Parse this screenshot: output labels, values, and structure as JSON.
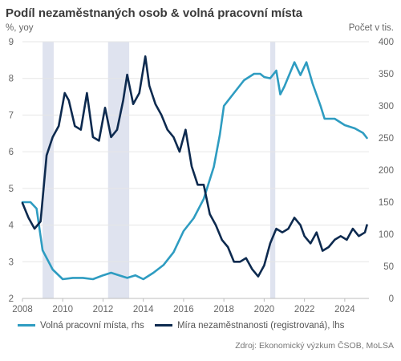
{
  "header": {
    "title": "Podíl nezaměstnaných osob & volná pracovní místa",
    "left_unit": "%, yoy",
    "right_unit": "Počet v tis."
  },
  "source": "Zdroj: Ekonomický výzkum ČSOB, MoLSA",
  "colors": {
    "vacancies": "#2e9cc1",
    "unemployment": "#0d2a4f",
    "shade": "#dfe3ef",
    "grid": "#e6e6e6"
  },
  "chart_data": {
    "type": "line",
    "x_range": [
      2008,
      2025.2
    ],
    "x_ticks": [
      "2008",
      "2010",
      "2012",
      "2014",
      "2016",
      "2018",
      "2020",
      "2022",
      "2024"
    ],
    "left_axis": {
      "range": [
        2,
        9
      ],
      "ticks": [
        "2",
        "3",
        "4",
        "5",
        "6",
        "7",
        "8",
        "9"
      ]
    },
    "right_axis": {
      "range": [
        0,
        400
      ],
      "ticks": [
        "0",
        "50",
        "100",
        "150",
        "200",
        "250",
        "300",
        "350",
        "400"
      ]
    },
    "shaded_periods": [
      [
        2009.0,
        2009.55
      ],
      [
        2012.25,
        2013.3
      ],
      [
        2020.3,
        2020.55
      ]
    ],
    "legend_position": "bottom",
    "series": [
      {
        "name": "Volná pracovní místa, rhs",
        "axis": "right",
        "color": "#2e9cc1",
        "points": [
          [
            2008.0,
            150
          ],
          [
            2008.4,
            150
          ],
          [
            2008.7,
            140
          ],
          [
            2009.0,
            75
          ],
          [
            2009.5,
            45
          ],
          [
            2010.0,
            30
          ],
          [
            2010.5,
            32
          ],
          [
            2011.0,
            32
          ],
          [
            2011.5,
            30
          ],
          [
            2012.0,
            36
          ],
          [
            2012.4,
            40
          ],
          [
            2012.8,
            36
          ],
          [
            2013.2,
            32
          ],
          [
            2013.6,
            36
          ],
          [
            2014.0,
            30
          ],
          [
            2014.5,
            40
          ],
          [
            2015.0,
            52
          ],
          [
            2015.5,
            72
          ],
          [
            2016.0,
            105
          ],
          [
            2016.5,
            125
          ],
          [
            2017.0,
            155
          ],
          [
            2017.5,
            205
          ],
          [
            2017.8,
            255
          ],
          [
            2018.0,
            300
          ],
          [
            2018.5,
            320
          ],
          [
            2019.0,
            340
          ],
          [
            2019.5,
            350
          ],
          [
            2019.8,
            350
          ],
          [
            2020.0,
            345
          ],
          [
            2020.3,
            343
          ],
          [
            2020.6,
            355
          ],
          [
            2020.8,
            318
          ],
          [
            2021.0,
            330
          ],
          [
            2021.5,
            368
          ],
          [
            2021.8,
            348
          ],
          [
            2022.1,
            368
          ],
          [
            2022.4,
            335
          ],
          [
            2022.8,
            300
          ],
          [
            2023.0,
            280
          ],
          [
            2023.5,
            280
          ],
          [
            2024.0,
            270
          ],
          [
            2024.5,
            265
          ],
          [
            2024.9,
            258
          ],
          [
            2025.1,
            250
          ]
        ]
      },
      {
        "name": "Míra nezaměstnanosti (registrovaná), lhs",
        "axis": "left",
        "color": "#0d2a4f",
        "points": [
          [
            2008.0,
            4.6
          ],
          [
            2008.3,
            4.2
          ],
          [
            2008.6,
            3.9
          ],
          [
            2008.9,
            4.1
          ],
          [
            2009.2,
            5.9
          ],
          [
            2009.5,
            6.4
          ],
          [
            2009.8,
            6.7
          ],
          [
            2010.1,
            7.6
          ],
          [
            2010.3,
            7.4
          ],
          [
            2010.6,
            6.7
          ],
          [
            2010.9,
            6.6
          ],
          [
            2011.2,
            7.6
          ],
          [
            2011.5,
            6.4
          ],
          [
            2011.8,
            6.3
          ],
          [
            2012.1,
            7.2
          ],
          [
            2012.4,
            6.4
          ],
          [
            2012.7,
            6.6
          ],
          [
            2013.0,
            7.4
          ],
          [
            2013.2,
            8.1
          ],
          [
            2013.5,
            7.3
          ],
          [
            2013.8,
            7.6
          ],
          [
            2014.1,
            8.6
          ],
          [
            2014.3,
            7.8
          ],
          [
            2014.6,
            7.3
          ],
          [
            2014.9,
            7.0
          ],
          [
            2015.2,
            6.6
          ],
          [
            2015.5,
            6.4
          ],
          [
            2015.8,
            6.0
          ],
          [
            2016.1,
            6.6
          ],
          [
            2016.4,
            5.6
          ],
          [
            2016.7,
            5.1
          ],
          [
            2017.0,
            5.1
          ],
          [
            2017.3,
            4.3
          ],
          [
            2017.6,
            4.0
          ],
          [
            2017.9,
            3.6
          ],
          [
            2018.2,
            3.4
          ],
          [
            2018.5,
            3.0
          ],
          [
            2018.8,
            3.0
          ],
          [
            2019.1,
            3.1
          ],
          [
            2019.4,
            2.8
          ],
          [
            2019.7,
            2.6
          ],
          [
            2020.0,
            2.9
          ],
          [
            2020.3,
            3.5
          ],
          [
            2020.6,
            3.9
          ],
          [
            2020.9,
            3.8
          ],
          [
            2021.2,
            3.9
          ],
          [
            2021.5,
            4.2
          ],
          [
            2021.8,
            4.0
          ],
          [
            2022.0,
            3.7
          ],
          [
            2022.3,
            3.5
          ],
          [
            2022.6,
            3.8
          ],
          [
            2022.9,
            3.3
          ],
          [
            2023.2,
            3.4
          ],
          [
            2023.5,
            3.6
          ],
          [
            2023.8,
            3.7
          ],
          [
            2024.1,
            3.6
          ],
          [
            2024.4,
            3.9
          ],
          [
            2024.7,
            3.7
          ],
          [
            2025.0,
            3.8
          ],
          [
            2025.1,
            4.0
          ]
        ]
      }
    ]
  },
  "legend": {
    "vacancies_label": "Volná pracovní místa, rhs",
    "unemployment_label": "Míra nezaměstnanosti (registrovaná), lhs"
  }
}
